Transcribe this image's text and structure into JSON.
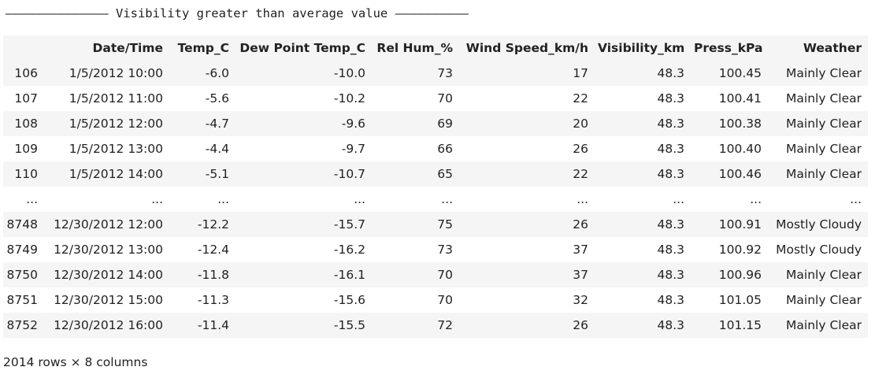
{
  "header": {
    "title_line": "—————————————— Visibility greater than average value ——————————"
  },
  "table": {
    "columns": [
      "",
      "Date/Time",
      "Temp_C",
      "Dew Point Temp_C",
      "Rel Hum_%",
      "Wind Speed_km/h",
      "Visibility_km",
      "Press_kPa",
      "Weather"
    ],
    "rows": [
      [
        "106",
        "1/5/2012 10:00",
        "-6.0",
        "-10.0",
        "73",
        "17",
        "48.3",
        "100.45",
        "Mainly Clear"
      ],
      [
        "107",
        "1/5/2012 11:00",
        "-5.6",
        "-10.2",
        "70",
        "22",
        "48.3",
        "100.41",
        "Mainly Clear"
      ],
      [
        "108",
        "1/5/2012 12:00",
        "-4.7",
        "-9.6",
        "69",
        "20",
        "48.3",
        "100.38",
        "Mainly Clear"
      ],
      [
        "109",
        "1/5/2012 13:00",
        "-4.4",
        "-9.7",
        "66",
        "26",
        "48.3",
        "100.40",
        "Mainly Clear"
      ],
      [
        "110",
        "1/5/2012 14:00",
        "-5.1",
        "-10.7",
        "65",
        "22",
        "48.3",
        "100.46",
        "Mainly Clear"
      ],
      [
        "...",
        "...",
        "...",
        "...",
        "...",
        "...",
        "...",
        "...",
        "..."
      ],
      [
        "8748",
        "12/30/2012 12:00",
        "-12.2",
        "-15.7",
        "75",
        "26",
        "48.3",
        "100.91",
        "Mostly Cloudy"
      ],
      [
        "8749",
        "12/30/2012 13:00",
        "-12.4",
        "-16.2",
        "73",
        "37",
        "48.3",
        "100.92",
        "Mostly Cloudy"
      ],
      [
        "8750",
        "12/30/2012 14:00",
        "-11.8",
        "-16.1",
        "70",
        "37",
        "48.3",
        "100.96",
        "Mainly Clear"
      ],
      [
        "8751",
        "12/30/2012 15:00",
        "-11.3",
        "-15.6",
        "70",
        "32",
        "48.3",
        "101.05",
        "Mainly Clear"
      ],
      [
        "8752",
        "12/30/2012 16:00",
        "-11.4",
        "-15.5",
        "72",
        "26",
        "48.3",
        "101.15",
        "Mainly Clear"
      ]
    ]
  },
  "footer": {
    "shape_text": "2014 rows × 8 columns"
  }
}
